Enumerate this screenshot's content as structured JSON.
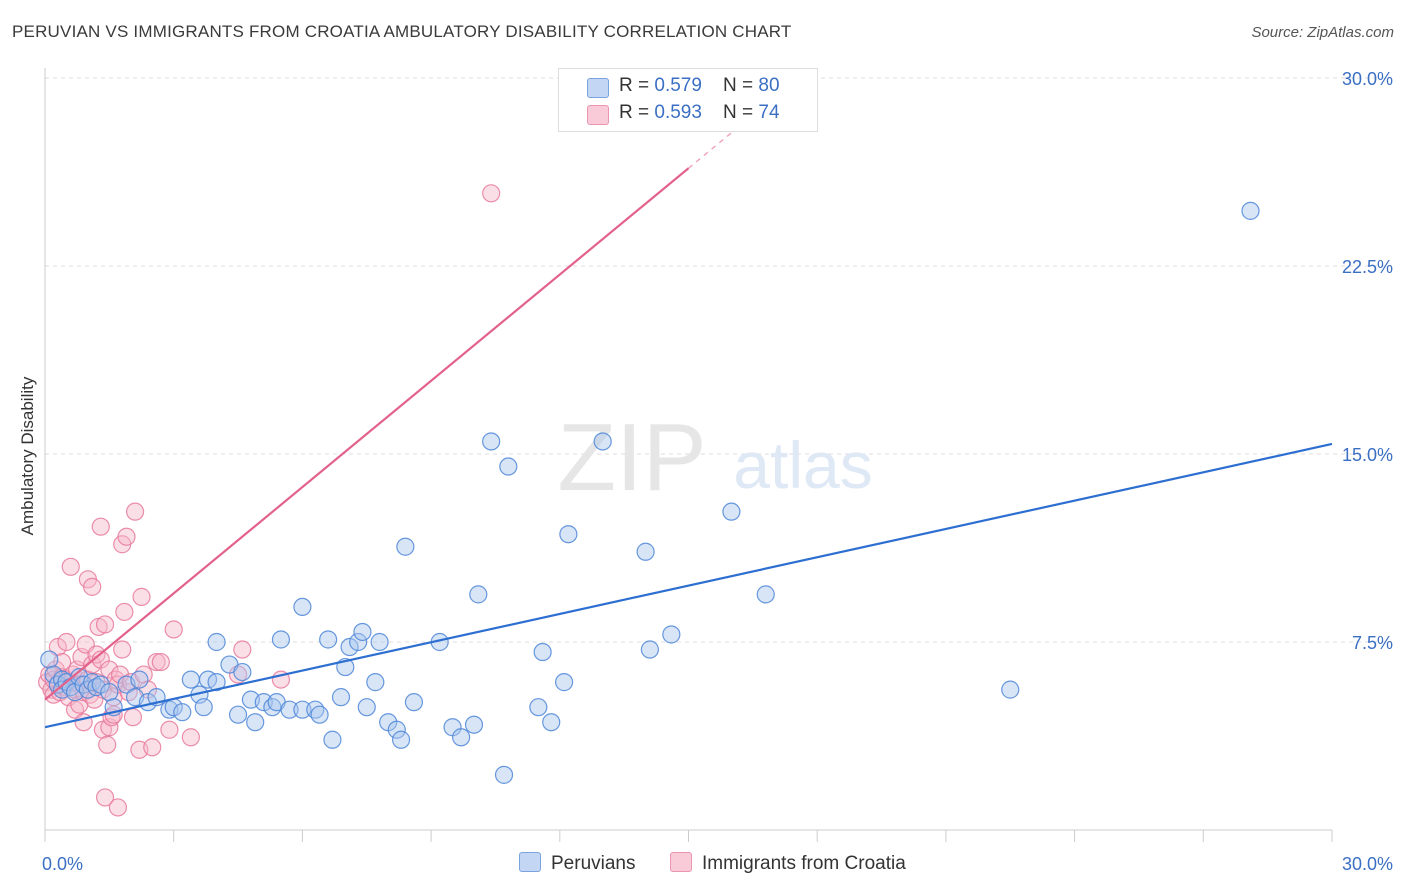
{
  "header": {
    "title": "PERUVIAN VS IMMIGRANTS FROM CROATIA AMBULATORY DISABILITY CORRELATION CHART",
    "source": "Source: ZipAtlas.com"
  },
  "watermark": {
    "zip": "ZIP",
    "atlas": "atlas"
  },
  "legend": {
    "rows": [
      {
        "r_label": "R = ",
        "r_value": "0.579",
        "n_label": "N = ",
        "n_value": "80"
      },
      {
        "r_label": "R = ",
        "r_value": "0.593",
        "n_label": "N = ",
        "n_value": "74"
      }
    ],
    "bottom": [
      "Peruvians",
      "Immigrants from Croatia"
    ]
  },
  "colors": {
    "peruvians_fill": "#a9c5ee",
    "peruvians_stroke": "#4d86d8",
    "peruvians_line": "#2d6fd1",
    "croatia_fill": "#f6b7ca",
    "croatia_stroke": "#e87a9c",
    "croatia_line": "#e3628b",
    "tick_label": "#3b6fc4",
    "grid": "#dddddd"
  },
  "chart_data": {
    "type": "scatter",
    "xlabel": "",
    "ylabel": "Ambulatory Disability",
    "xlim": [
      0,
      30
    ],
    "ylim": [
      0,
      30
    ],
    "x_tick_labels": [
      "0.0%",
      "30.0%"
    ],
    "y_ticks": [
      7.5,
      15.0,
      22.5,
      30.0
    ],
    "y_tick_labels": [
      "7.5%",
      "15.0%",
      "22.5%",
      "30.0%"
    ],
    "grid": true,
    "legend_position": "top-center",
    "series": [
      {
        "name": "Peruvians",
        "r": 0.579,
        "n": 80,
        "trend": {
          "x": [
            0,
            30
          ],
          "y": [
            4.1,
            15.4
          ]
        },
        "points": [
          [
            0.1,
            6.8
          ],
          [
            0.2,
            6.2
          ],
          [
            0.3,
            5.8
          ],
          [
            0.4,
            6.0
          ],
          [
            0.4,
            5.6
          ],
          [
            0.5,
            5.9
          ],
          [
            0.6,
            5.7
          ],
          [
            0.7,
            5.5
          ],
          [
            0.8,
            6.1
          ],
          [
            0.9,
            5.8
          ],
          [
            1.0,
            5.6
          ],
          [
            1.1,
            5.9
          ],
          [
            1.2,
            5.7
          ],
          [
            1.3,
            5.8
          ],
          [
            1.5,
            5.5
          ],
          [
            1.6,
            4.9
          ],
          [
            1.9,
            5.8
          ],
          [
            2.1,
            5.3
          ],
          [
            2.2,
            6.0
          ],
          [
            2.4,
            5.1
          ],
          [
            2.6,
            5.3
          ],
          [
            2.9,
            4.8
          ],
          [
            3.0,
            4.9
          ],
          [
            3.2,
            4.7
          ],
          [
            3.4,
            6.0
          ],
          [
            3.6,
            5.4
          ],
          [
            3.7,
            4.9
          ],
          [
            3.8,
            6.0
          ],
          [
            4.0,
            5.9
          ],
          [
            4.0,
            7.5
          ],
          [
            4.3,
            6.6
          ],
          [
            4.5,
            4.6
          ],
          [
            4.6,
            6.3
          ],
          [
            4.8,
            5.2
          ],
          [
            4.9,
            4.3
          ],
          [
            5.1,
            5.1
          ],
          [
            5.3,
            4.9
          ],
          [
            5.4,
            5.1
          ],
          [
            5.5,
            7.6
          ],
          [
            5.7,
            4.8
          ],
          [
            6.0,
            4.8
          ],
          [
            6.0,
            8.9
          ],
          [
            6.3,
            4.8
          ],
          [
            6.4,
            4.6
          ],
          [
            6.6,
            7.6
          ],
          [
            6.7,
            3.6
          ],
          [
            6.9,
            5.3
          ],
          [
            7.0,
            6.5
          ],
          [
            7.1,
            7.3
          ],
          [
            7.3,
            7.5
          ],
          [
            7.4,
            7.9
          ],
          [
            7.5,
            4.9
          ],
          [
            7.7,
            5.9
          ],
          [
            7.8,
            7.5
          ],
          [
            8.0,
            4.3
          ],
          [
            8.2,
            4.0
          ],
          [
            8.3,
            3.6
          ],
          [
            8.4,
            11.3
          ],
          [
            8.6,
            5.1
          ],
          [
            9.2,
            7.5
          ],
          [
            9.5,
            4.1
          ],
          [
            9.7,
            3.7
          ],
          [
            10.0,
            4.2
          ],
          [
            10.1,
            9.4
          ],
          [
            10.4,
            15.5
          ],
          [
            10.7,
            2.2
          ],
          [
            10.8,
            14.5
          ],
          [
            11.5,
            4.9
          ],
          [
            11.6,
            7.1
          ],
          [
            11.8,
            4.3
          ],
          [
            12.1,
            5.9
          ],
          [
            12.2,
            11.8
          ],
          [
            13.0,
            15.5
          ],
          [
            14.0,
            11.1
          ],
          [
            14.1,
            7.2
          ],
          [
            14.6,
            7.8
          ],
          [
            16.0,
            12.7
          ],
          [
            16.8,
            9.4
          ],
          [
            22.5,
            5.6
          ],
          [
            28.1,
            24.7
          ]
        ]
      },
      {
        "name": "Immigrants from Croatia",
        "r": 0.593,
        "n": 74,
        "trend": {
          "x": [
            0,
            15
          ],
          "y": [
            5.2,
            26.4
          ]
        },
        "points": [
          [
            0.05,
            5.9
          ],
          [
            0.1,
            6.2
          ],
          [
            0.15,
            5.6
          ],
          [
            0.2,
            6.0
          ],
          [
            0.2,
            5.4
          ],
          [
            0.25,
            6.4
          ],
          [
            0.3,
            5.8
          ],
          [
            0.3,
            7.3
          ],
          [
            0.35,
            5.5
          ],
          [
            0.4,
            6.1
          ],
          [
            0.4,
            6.7
          ],
          [
            0.45,
            5.7
          ],
          [
            0.5,
            6.0
          ],
          [
            0.5,
            7.5
          ],
          [
            0.55,
            5.3
          ],
          [
            0.6,
            5.9
          ],
          [
            0.6,
            10.5
          ],
          [
            0.65,
            6.2
          ],
          [
            0.7,
            4.8
          ],
          [
            0.7,
            5.6
          ],
          [
            0.75,
            6.4
          ],
          [
            0.8,
            5.0
          ],
          [
            0.8,
            5.8
          ],
          [
            0.85,
            6.9
          ],
          [
            0.9,
            4.3
          ],
          [
            0.9,
            5.5
          ],
          [
            0.95,
            7.4
          ],
          [
            1.0,
            6.0
          ],
          [
            1.0,
            10.0
          ],
          [
            1.05,
            5.4
          ],
          [
            1.1,
            9.7
          ],
          [
            1.1,
            6.6
          ],
          [
            1.15,
            5.2
          ],
          [
            1.2,
            5.9
          ],
          [
            1.2,
            7.0
          ],
          [
            1.25,
            8.1
          ],
          [
            1.3,
            12.1
          ],
          [
            1.3,
            6.8
          ],
          [
            1.35,
            4.0
          ],
          [
            1.35,
            5.6
          ],
          [
            1.4,
            8.2
          ],
          [
            1.4,
            1.3
          ],
          [
            1.45,
            3.4
          ],
          [
            1.5,
            4.1
          ],
          [
            1.5,
            6.4
          ],
          [
            1.55,
            4.5
          ],
          [
            1.6,
            5.3
          ],
          [
            1.6,
            4.6
          ],
          [
            1.65,
            6.0
          ],
          [
            1.7,
            0.9
          ],
          [
            1.7,
            5.8
          ],
          [
            1.75,
            6.2
          ],
          [
            1.8,
            7.2
          ],
          [
            1.8,
            11.4
          ],
          [
            1.85,
            8.7
          ],
          [
            1.9,
            11.7
          ],
          [
            1.95,
            5.5
          ],
          [
            2.0,
            5.9
          ],
          [
            2.05,
            4.5
          ],
          [
            2.1,
            12.7
          ],
          [
            2.2,
            3.2
          ],
          [
            2.25,
            9.3
          ],
          [
            2.3,
            6.2
          ],
          [
            2.4,
            5.6
          ],
          [
            2.5,
            3.3
          ],
          [
            2.6,
            6.7
          ],
          [
            2.7,
            6.7
          ],
          [
            2.9,
            4.0
          ],
          [
            3.0,
            8.0
          ],
          [
            3.4,
            3.7
          ],
          [
            4.5,
            6.2
          ],
          [
            4.6,
            7.2
          ],
          [
            5.5,
            6.0
          ],
          [
            10.4,
            25.4
          ]
        ]
      }
    ]
  }
}
